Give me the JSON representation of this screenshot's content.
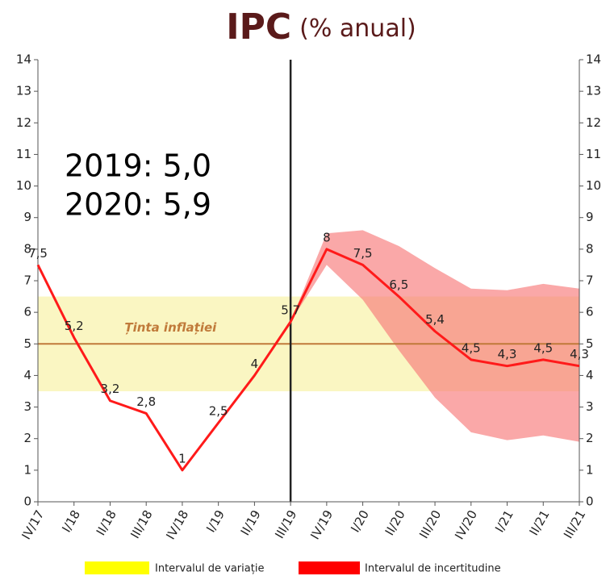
{
  "chart_data": {
    "type": "line",
    "title": "IPC",
    "subtitle": "(% anual)",
    "annotations": [
      "2019: 5,0",
      "2020: 5,9"
    ],
    "categories": [
      "IV/17",
      "I/18",
      "II/18",
      "III/18",
      "IV/18",
      "I/19",
      "II/19",
      "III/19",
      "IV/19",
      "I/20",
      "II/20",
      "III/20",
      "IV/20",
      "I/21",
      "II/21",
      "III/21"
    ],
    "series": [
      {
        "name": "IPC",
        "color": "#ff1a1a",
        "values": [
          7.5,
          5.2,
          3.2,
          2.8,
          1,
          2.5,
          4,
          5.7,
          8,
          7.5,
          6.5,
          5.4,
          4.5,
          4.3,
          4.5,
          4.3
        ],
        "value_labels": [
          "7,5",
          "5,2",
          "3,2",
          "2,8",
          "1",
          "2,5",
          "4",
          "5,7",
          "8",
          "7,5",
          "6,5",
          "5,4",
          "4,5",
          "4,3",
          "4,5",
          "4,3"
        ]
      }
    ],
    "uncertainty": {
      "name": "Intervalul de incertitudine",
      "color": "#ff0000",
      "fill": "#f77a7a",
      "upper": [
        null,
        null,
        null,
        null,
        null,
        null,
        null,
        5.7,
        8.5,
        8.6,
        8.1,
        7.4,
        6.75,
        6.7,
        6.9,
        6.75
      ],
      "lower": [
        null,
        null,
        null,
        null,
        null,
        null,
        null,
        5.7,
        7.5,
        6.4,
        4.8,
        3.3,
        2.2,
        1.95,
        2.1,
        1.9
      ]
    },
    "variation": {
      "name": "Intervalul de variație",
      "color": "#ffff00",
      "fill": "#faf6c2",
      "lower": 3.5,
      "upper": 6.5
    },
    "target": {
      "label": "Ținta inflației",
      "value": 5,
      "color": "#c07a3a"
    },
    "forecast_start": "III/19",
    "ylim": [
      0,
      14
    ],
    "yticks": [
      0,
      1,
      2,
      3,
      4,
      5,
      6,
      7,
      8,
      9,
      10,
      11,
      12,
      13,
      14
    ],
    "grid": false
  }
}
